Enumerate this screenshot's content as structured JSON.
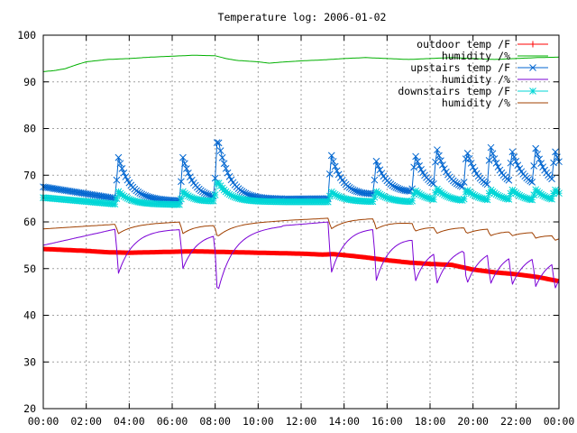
{
  "chart_data": {
    "type": "line",
    "title": "Temperature log: 2006-01-02",
    "xlabel": "",
    "ylabel": "",
    "x_ticks": [
      "00:00",
      "02:00",
      "04:00",
      "06:00",
      "08:00",
      "10:00",
      "12:00",
      "14:00",
      "16:00",
      "18:00",
      "20:00",
      "22:00",
      "00:00"
    ],
    "x_range_hours": [
      0,
      24
    ],
    "ylim": [
      20,
      100
    ],
    "y_ticks": [
      20,
      30,
      40,
      50,
      60,
      70,
      80,
      90,
      100
    ],
    "grid": true,
    "legend_placement": "top-right",
    "series": [
      {
        "name": "outdoor temp /F",
        "color": "#ff0000",
        "marker": "plus",
        "points": [
          [
            0,
            54.2
          ],
          [
            1,
            54
          ],
          [
            2,
            53.8
          ],
          [
            3,
            53.5
          ],
          [
            4,
            53.4
          ],
          [
            5,
            53.5
          ],
          [
            6,
            53.6
          ],
          [
            7,
            53.7
          ],
          [
            8,
            53.6
          ],
          [
            9,
            53.5
          ],
          [
            10,
            53.4
          ],
          [
            11,
            53.3
          ],
          [
            12,
            53.2
          ],
          [
            13,
            53
          ],
          [
            13.5,
            53.1
          ],
          [
            14,
            52.9
          ],
          [
            15,
            52.4
          ],
          [
            16,
            51.8
          ],
          [
            17,
            51.3
          ],
          [
            18,
            51
          ],
          [
            19,
            50.8
          ],
          [
            20,
            49.8
          ],
          [
            21,
            49.2
          ],
          [
            22,
            48.8
          ],
          [
            23,
            48.2
          ],
          [
            24,
            47.3
          ]
        ]
      },
      {
        "name": "humidity /%",
        "color": "#00b000",
        "marker": "none",
        "points": [
          [
            0,
            92.2
          ],
          [
            0.5,
            92.4
          ],
          [
            1,
            92.8
          ],
          [
            1.5,
            93.6
          ],
          [
            2,
            94.3
          ],
          [
            3,
            94.8
          ],
          [
            4,
            95
          ],
          [
            5,
            95.3
          ],
          [
            6,
            95.5
          ],
          [
            7,
            95.7
          ],
          [
            8,
            95.6
          ],
          [
            8.5,
            95
          ],
          [
            9,
            94.6
          ],
          [
            10,
            94.3
          ],
          [
            10.5,
            94
          ],
          [
            11,
            94.2
          ],
          [
            12,
            94.5
          ],
          [
            13,
            94.7
          ],
          [
            14,
            95
          ],
          [
            15,
            95.2
          ],
          [
            16,
            95
          ],
          [
            17,
            94.8
          ],
          [
            18,
            95
          ],
          [
            19,
            95.2
          ],
          [
            20,
            95
          ],
          [
            21,
            94.8
          ],
          [
            22,
            95
          ],
          [
            23,
            95.2
          ],
          [
            24,
            95.3
          ]
        ]
      },
      {
        "name": "upstairs temp /F",
        "color": "#0066d0",
        "marker": "x",
        "baseline": [
          [
            0,
            67.5
          ],
          [
            3.4,
            65
          ],
          [
            3.5,
            64.8
          ],
          [
            6.5,
            64.5
          ],
          [
            8,
            64.8
          ],
          [
            13.3,
            65
          ],
          [
            15.5,
            65.8
          ],
          [
            17.3,
            66.2
          ],
          [
            18.4,
            66.5
          ],
          [
            19.7,
            66.5
          ],
          [
            20.8,
            66.5
          ],
          [
            22,
            67
          ],
          [
            23.4,
            67
          ],
          [
            24,
            67
          ]
        ],
        "spikes": [
          [
            3.5,
            73.8
          ],
          [
            6.5,
            73.8
          ],
          [
            8.1,
            78.5
          ],
          [
            13.4,
            74.5
          ],
          [
            15.5,
            73
          ],
          [
            17.3,
            74.5
          ],
          [
            18.3,
            76
          ],
          [
            19.7,
            75.5
          ],
          [
            20.8,
            76.5
          ],
          [
            21.8,
            75.5
          ],
          [
            22.9,
            76
          ],
          [
            23.8,
            75.5
          ]
        ]
      },
      {
        "name": "humidity /%",
        "color": "#7a00d6",
        "marker": "none",
        "baseline": [
          [
            0,
            55
          ],
          [
            3.4,
            58.5
          ],
          [
            6.4,
            58.5
          ],
          [
            8,
            58
          ],
          [
            13.3,
            60
          ],
          [
            15.4,
            59
          ],
          [
            17.3,
            57
          ],
          [
            18.3,
            55.8
          ],
          [
            19.7,
            55.3
          ],
          [
            20.8,
            55
          ],
          [
            21.8,
            54.5
          ],
          [
            22.9,
            54
          ],
          [
            23.7,
            53.5
          ],
          [
            24,
            53.5
          ]
        ],
        "dips": [
          [
            3.5,
            49
          ],
          [
            6.5,
            50
          ],
          [
            8.1,
            44.5
          ],
          [
            13.4,
            49
          ],
          [
            15.5,
            47.5
          ],
          [
            17.3,
            47
          ],
          [
            18.3,
            46.5
          ],
          [
            19.7,
            46.5
          ],
          [
            20.8,
            46.5
          ],
          [
            21.8,
            46.3
          ],
          [
            22.9,
            46
          ],
          [
            23.8,
            45.5
          ]
        ]
      },
      {
        "name": "downstairs temp /F",
        "color": "#00d6d6",
        "marker": "star",
        "baseline": [
          [
            0,
            65.2
          ],
          [
            3.4,
            63.8
          ],
          [
            6.4,
            63.7
          ],
          [
            8,
            64.3
          ],
          [
            13.3,
            64.3
          ],
          [
            15.5,
            64.3
          ],
          [
            17.3,
            64.2
          ],
          [
            18.4,
            64.3
          ],
          [
            19.7,
            64.3
          ],
          [
            20.8,
            64.3
          ],
          [
            22,
            64.3
          ],
          [
            23.4,
            64.2
          ],
          [
            24,
            64.2
          ]
        ],
        "spikes": [
          [
            3.5,
            66.5
          ],
          [
            6.5,
            66.5
          ],
          [
            8.1,
            68.8
          ],
          [
            13.4,
            66.5
          ],
          [
            15.5,
            66.5
          ],
          [
            17.3,
            66.8
          ],
          [
            18.3,
            67.2
          ],
          [
            19.7,
            67
          ],
          [
            20.8,
            67
          ],
          [
            21.8,
            67
          ],
          [
            22.9,
            67
          ],
          [
            23.8,
            67
          ]
        ]
      },
      {
        "name": "humidity /%",
        "color": "#a04000",
        "marker": "none",
        "baseline": [
          [
            0,
            58.5
          ],
          [
            3.4,
            59.5
          ],
          [
            6.4,
            60
          ],
          [
            8,
            59.5
          ],
          [
            13.3,
            60.8
          ],
          [
            15.4,
            60.8
          ],
          [
            17.3,
            59.8
          ],
          [
            18.3,
            59.2
          ],
          [
            19.7,
            59
          ],
          [
            20.8,
            58.8
          ],
          [
            21.8,
            58.3
          ],
          [
            22.9,
            58
          ],
          [
            23.7,
            57.5
          ],
          [
            24,
            57.5
          ]
        ],
        "dips": [
          [
            3.5,
            57.5
          ],
          [
            6.5,
            57.5
          ],
          [
            8.1,
            56.8
          ],
          [
            13.4,
            58.5
          ],
          [
            15.5,
            58.5
          ],
          [
            17.3,
            58
          ],
          [
            18.3,
            57.5
          ],
          [
            19.7,
            57.5
          ],
          [
            20.8,
            57
          ],
          [
            21.8,
            57
          ],
          [
            22.9,
            56.5
          ],
          [
            23.8,
            56
          ]
        ]
      }
    ]
  }
}
